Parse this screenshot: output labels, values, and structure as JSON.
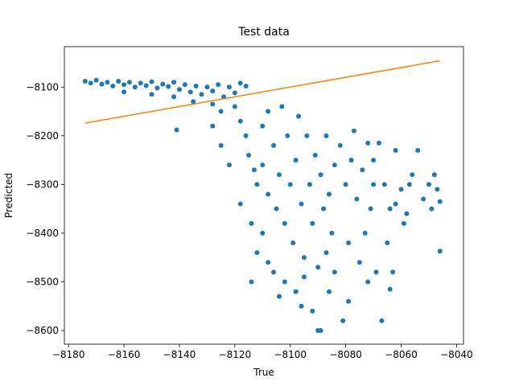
{
  "chart_data": {
    "type": "scatter",
    "title": "Test data",
    "x_label": "True",
    "y_label": "Predicted",
    "xlim": [
      -8181.5,
      -8037.5
    ],
    "ylim": [
      -8628,
      -8017
    ],
    "xticks": [
      {
        "value": -8180,
        "label": "−8180"
      },
      {
        "value": -8160,
        "label": "−8160"
      },
      {
        "value": -8140,
        "label": "−8140"
      },
      {
        "value": -8120,
        "label": "−8120"
      },
      {
        "value": -8100,
        "label": "−8100"
      },
      {
        "value": -8080,
        "label": "−8080"
      },
      {
        "value": -8060,
        "label": "−8060"
      },
      {
        "value": -8040,
        "label": "−8040"
      }
    ],
    "yticks": [
      {
        "value": -8600,
        "label": "−8600"
      },
      {
        "value": -8500,
        "label": "−8500"
      },
      {
        "value": -8400,
        "label": "−8400"
      },
      {
        "value": -8300,
        "label": "−8300"
      },
      {
        "value": -8200,
        "label": "−8200"
      },
      {
        "value": -8100,
        "label": "−8100"
      }
    ],
    "series": [
      {
        "type": "scatter",
        "color": "#1f77b4",
        "x": [
          -8174,
          -8172,
          -8170,
          -8168,
          -8166,
          -8164,
          -8162,
          -8160,
          -8158,
          -8156,
          -8154,
          -8152,
          -8150,
          -8148,
          -8146,
          -8144,
          -8142,
          -8140,
          -8138,
          -8136,
          -8134,
          -8132,
          -8130,
          -8128,
          -8126,
          -8124,
          -8122,
          -8120,
          -8118,
          -8116,
          -8160,
          -8150,
          -8142,
          -8141,
          -8135,
          -8128,
          -8125,
          -8120,
          -8118,
          -8116,
          -8115,
          -8113,
          -8112,
          -8110,
          -8110,
          -8108,
          -8108,
          -8106,
          -8105,
          -8104,
          -8103,
          -8102,
          -8101,
          -8100,
          -8099,
          -8098,
          -8097,
          -8096,
          -8095,
          -8094,
          -8093,
          -8092,
          -8091,
          -8090,
          -8089,
          -8088,
          -8087,
          -8086,
          -8085,
          -8084,
          -8110,
          -8112,
          -8106,
          -8102,
          -8098,
          -8096,
          -8092,
          -8090,
          -8089,
          -8095,
          -8108,
          -8114,
          -8118,
          -8122,
          -8125,
          -8128,
          -8104,
          -8087,
          -8084,
          -8114,
          -8082,
          -8080,
          -8079,
          -8078,
          -8077,
          -8076,
          -8075,
          -8074,
          -8073,
          -8072,
          -8071,
          -8070,
          -8069,
          -8068,
          -8067,
          -8066,
          -8065,
          -8064,
          -8063,
          -8062,
          -8060,
          -8059,
          -8058,
          -8057,
          -8056,
          -8054,
          -8052,
          -8050,
          -8049,
          -8048,
          -8047,
          -8046,
          -8046,
          -8064,
          -8081,
          -8086,
          -8079,
          -8072,
          -8070,
          -8062
        ],
        "y": [
          -8088,
          -8092,
          -8086,
          -8094,
          -8090,
          -8098,
          -8088,
          -8095,
          -8090,
          -8100,
          -8092,
          -8097,
          -8089,
          -8102,
          -8094,
          -8099,
          -8090,
          -8105,
          -8095,
          -8110,
          -8098,
          -8115,
          -8100,
          -8108,
          -8095,
          -8120,
          -8100,
          -8112,
          -8092,
          -8098,
          -8110,
          -8115,
          -8120,
          -8188,
          -8130,
          -8135,
          -8150,
          -8140,
          -8170,
          -8200,
          -8240,
          -8270,
          -8300,
          -8180,
          -8260,
          -8320,
          -8150,
          -8220,
          -8350,
          -8280,
          -8140,
          -8380,
          -8200,
          -8300,
          -8420,
          -8250,
          -8160,
          -8340,
          -8450,
          -8200,
          -8300,
          -8380,
          -8240,
          -8470,
          -8280,
          -8350,
          -8200,
          -8320,
          -8400,
          -8260,
          -8400,
          -8440,
          -8480,
          -8500,
          -8520,
          -8550,
          -8560,
          -8600,
          -8600,
          -8490,
          -8460,
          -8380,
          -8340,
          -8260,
          -8220,
          -8180,
          -8530,
          -8440,
          -8480,
          -8500,
          -8220,
          -8300,
          -8420,
          -8250,
          -8190,
          -8330,
          -8460,
          -8270,
          -8400,
          -8215,
          -8350,
          -8300,
          -8480,
          -8215,
          -8580,
          -8300,
          -8420,
          -8350,
          -8480,
          -8340,
          -8310,
          -8380,
          -8360,
          -8300,
          -8280,
          -8230,
          -8330,
          -8300,
          -8350,
          -8280,
          -8310,
          -8335,
          -8437,
          -8515,
          -8580,
          -8520,
          -8540,
          -8500,
          -8250,
          -8230
        ]
      },
      {
        "type": "line",
        "color": "#ff7f0e",
        "x": [
          -8174,
          -8046
        ],
        "y": [
          -8174,
          -8046
        ]
      }
    ]
  }
}
